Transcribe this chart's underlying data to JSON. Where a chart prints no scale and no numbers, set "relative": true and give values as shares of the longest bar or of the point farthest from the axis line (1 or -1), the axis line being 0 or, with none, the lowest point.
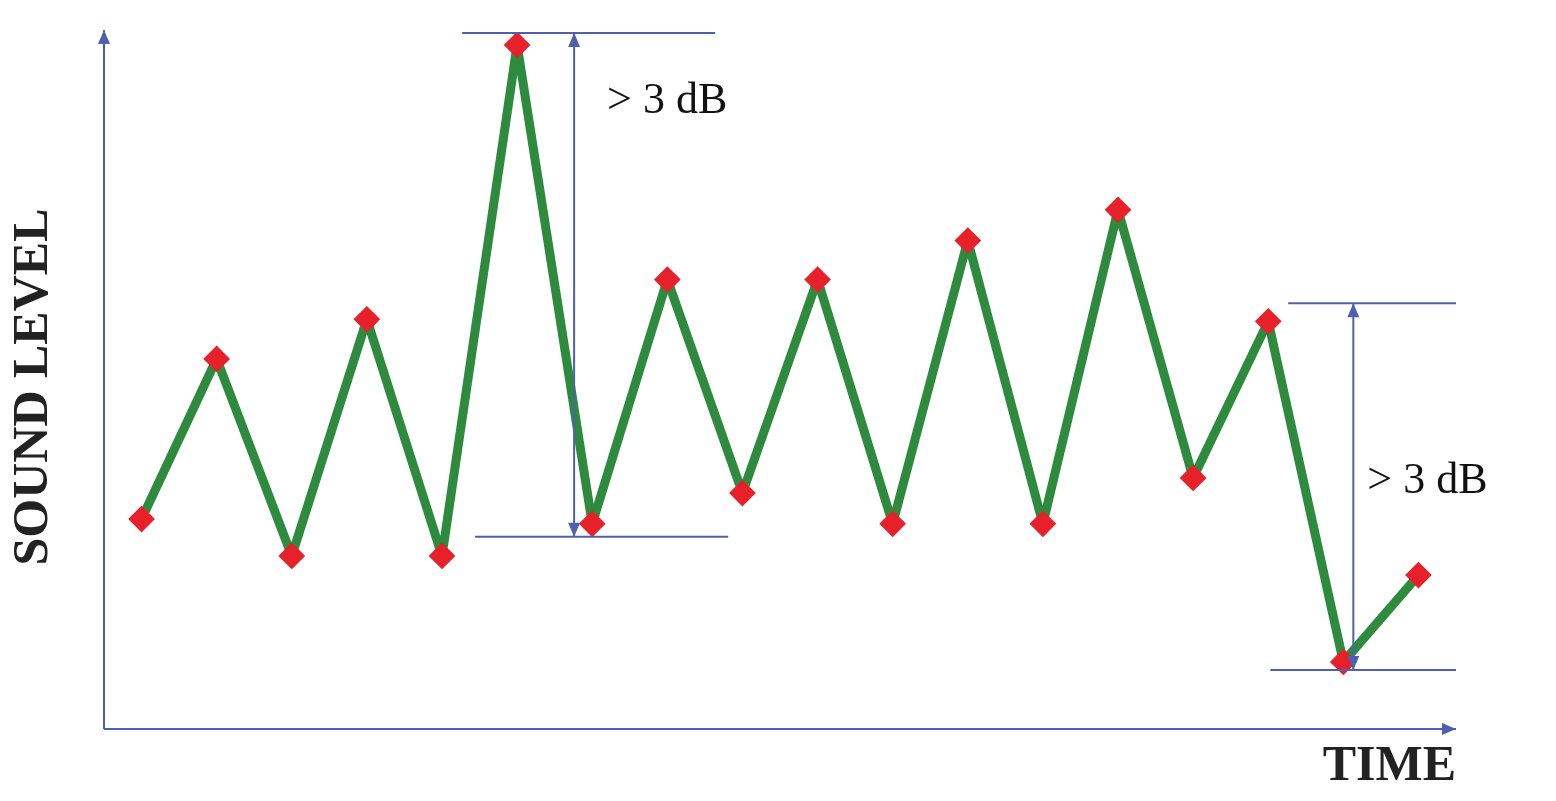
{
  "chart_data": {
    "type": "line",
    "relative": true,
    "xlabel": "TIME",
    "ylabel": "SOUND LEVEL",
    "categories": [
      null,
      null,
      null,
      null,
      null,
      null,
      null,
      null,
      null,
      null,
      null,
      null,
      null,
      null,
      null,
      null,
      null,
      null
    ],
    "series": [
      {
        "color": "#2e8b3e",
        "colors": [
          "#e8202a",
          "#e8202a",
          "#e8202a",
          "#e8202a",
          "#e8202a",
          "#e8202a",
          "#e8202a",
          "#e8202a",
          "#e8202a",
          "#e8202a",
          "#e8202a",
          "#e8202a",
          "#e8202a",
          "#e8202a",
          "#e8202a",
          "#e8202a",
          "#e8202a",
          "#e8202a"
        ],
        "values": [
          0.307,
          0.541,
          0.253,
          0.599,
          0.253,
          1,
          0.3,
          0.657,
          0.345,
          0.657,
          0.3,
          0.714,
          0.3,
          0.759,
          0.367,
          0.596,
          0.098,
          0.225
        ]
      }
    ],
    "marker": "diamond",
    "grid": false,
    "legend": false,
    "annotations": [
      "> 3 dB",
      "> 3 dB"
    ]
  }
}
